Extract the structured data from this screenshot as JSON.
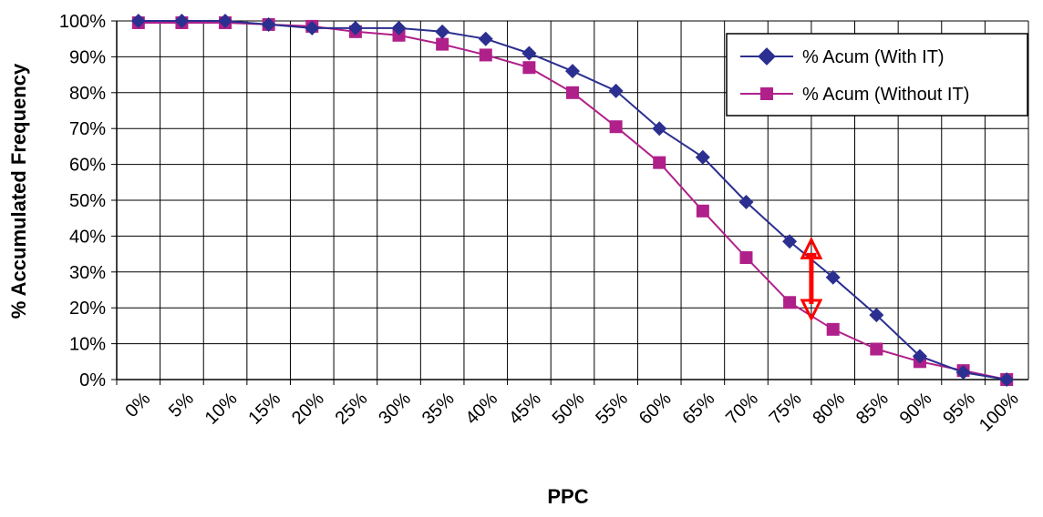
{
  "chart_data": {
    "type": "line",
    "title": "",
    "xlabel": "PPC",
    "ylabel": "% Accumulated Frequency",
    "x_ticks": [
      "0%",
      "5%",
      "10%",
      "15%",
      "20%",
      "25%",
      "30%",
      "35%",
      "40%",
      "45%",
      "50%",
      "55%",
      "60%",
      "65%",
      "70%",
      "75%",
      "80%",
      "85%",
      "90%",
      "95%",
      "100%"
    ],
    "y_ticks": [
      "0%",
      "10%",
      "20%",
      "30%",
      "40%",
      "50%",
      "60%",
      "70%",
      "80%",
      "90%",
      "100%"
    ],
    "ylim": [
      0,
      100
    ],
    "xlim": [
      0,
      1.05
    ],
    "grid": true,
    "legend_position": "top-right",
    "x": [
      0.025,
      0.075,
      0.125,
      0.175,
      0.225,
      0.275,
      0.325,
      0.375,
      0.425,
      0.475,
      0.525,
      0.575,
      0.625,
      0.675,
      0.725,
      0.775,
      0.825,
      0.875,
      0.925,
      0.975,
      1.025
    ],
    "series": [
      {
        "name": "% Acum (With IT)",
        "color": "#2B2F8F",
        "marker": "diamond",
        "values": [
          100,
          100,
          100,
          99,
          98,
          98,
          98,
          97,
          95,
          91,
          86,
          80.5,
          70,
          62,
          49.5,
          38.5,
          28.5,
          18,
          6.5,
          2,
          0
        ]
      },
      {
        "name": "% Acum (Without IT)",
        "color": "#B0208A",
        "marker": "square",
        "values": [
          99.5,
          99.5,
          99.5,
          99,
          98.5,
          97,
          96,
          93.5,
          90.5,
          87,
          80,
          70.5,
          60.5,
          47,
          34,
          21.5,
          14,
          8.5,
          5,
          2.5,
          0
        ]
      }
    ],
    "annotation": {
      "type": "double-arrow",
      "color": "#FF0000",
      "x": 0.8,
      "y_from": 17,
      "y_to": 39
    }
  }
}
